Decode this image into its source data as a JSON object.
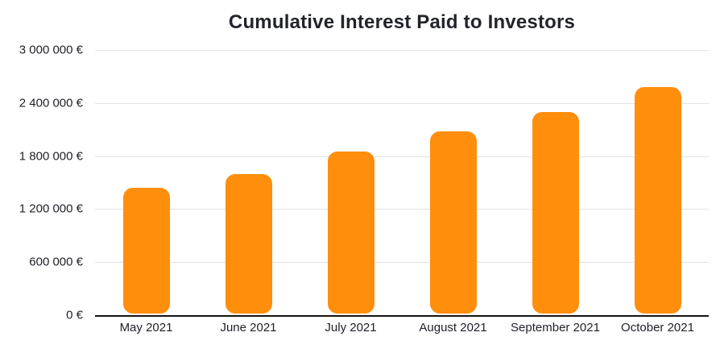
{
  "page": {
    "background_color": "#ffffff"
  },
  "chart_data": {
    "type": "bar",
    "title": "Cumulative Interest Paid to Investors",
    "categories": [
      "May 2021",
      "June 2021",
      "July 2021",
      "August 2021",
      "September 2021",
      "October 2021"
    ],
    "values": [
      1440000,
      1600000,
      1850000,
      2080000,
      2300000,
      2580000
    ],
    "y_ticks": [
      {
        "value": 0,
        "label": "0 €"
      },
      {
        "value": 600000,
        "label": "600 000 €"
      },
      {
        "value": 1200000,
        "label": "1 200 000 €"
      },
      {
        "value": 1800000,
        "label": "1 800 000 €"
      },
      {
        "value": 2400000,
        "label": "2 400 000 €"
      },
      {
        "value": 3000000,
        "label": "3 000 000 €"
      }
    ],
    "ylim": [
      0,
      3000000
    ],
    "xlabel": "",
    "ylabel": "",
    "currency": "EUR",
    "grid": true,
    "legend": false,
    "colors": {
      "bar": "#FF8E0D",
      "gridline": "#e3e3e3",
      "axis_line": "#141414",
      "tick_text": "#1e2027",
      "title_text": "#22242b"
    }
  }
}
